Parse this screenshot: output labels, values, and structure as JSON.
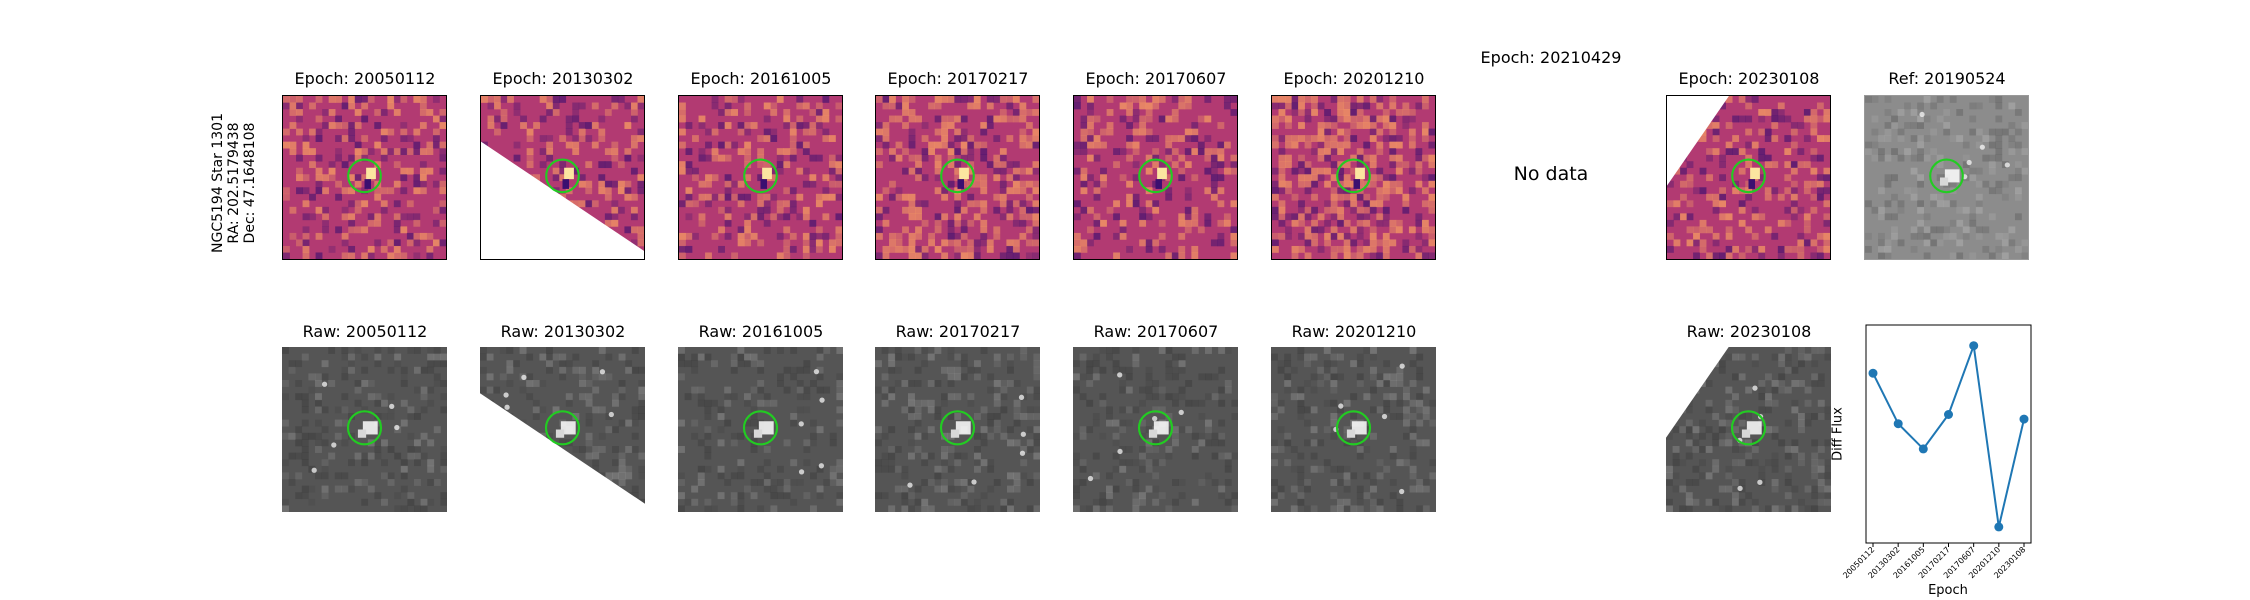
{
  "ylabel": {
    "line1": "NGC5194 Star 1301",
    "line2": "RA: 202.5179438",
    "line3": "Dec: 47.1648108"
  },
  "top_titles": [
    "Epoch: 20050112",
    "Epoch: 20130302",
    "Epoch: 20161005",
    "Epoch: 20170217",
    "Epoch: 20170607",
    "Epoch: 20201210",
    "Epoch: 20210429",
    "Epoch: 20230108",
    "Ref: 20190524"
  ],
  "no_data_text": "No data",
  "bottom_titles": [
    "Raw: 20050112",
    "Raw: 20130302",
    "Raw: 20161005",
    "Raw: 20170217",
    "Raw: 20170607",
    "Raw: 20201210",
    "Raw: 20230108"
  ],
  "colors": {
    "diff_base": "#b23a72",
    "diff_bright": "#f59a63",
    "diff_dark": "#3b0f70",
    "raw_base": "#555555",
    "ref_base": "#8c8c8c",
    "circle": "#22cc22",
    "line": "#1f77b4"
  },
  "chart_data": {
    "type": "line",
    "xlabel": "Epoch",
    "ylabel": "Diff Flux",
    "categories": [
      "20050112",
      "20130302",
      "20161005",
      "20170217",
      "20170607",
      "20201210",
      "20230108"
    ],
    "values": [
      0.74,
      0.52,
      0.41,
      0.56,
      0.86,
      0.07,
      0.54
    ],
    "ylim": [
      0.0,
      0.95
    ],
    "markers": true,
    "grid": false
  }
}
